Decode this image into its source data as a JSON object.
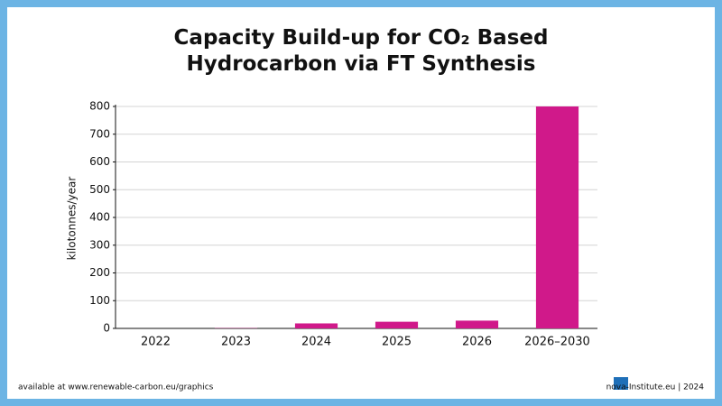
{
  "chart_data": {
    "type": "bar",
    "title": "Capacity Build-up for CO₂ Based Hydrocarbon via FT Synthesis",
    "y_label": "kilotonnes/year",
    "categories": [
      "2022",
      "2023",
      "2024",
      "2025",
      "2026",
      "2026–2030"
    ],
    "values": [
      0,
      1,
      18,
      24,
      28,
      800
    ],
    "color": "#d0198a",
    "ylim": [
      0,
      800
    ],
    "yticks": [
      0,
      100,
      200,
      300,
      400,
      500,
      600,
      700,
      800
    ],
    "grid": true
  },
  "footer": {
    "source": "available at www.renewable-carbon.eu/graphics",
    "credit": "nova-Institute.eu | 2024"
  }
}
